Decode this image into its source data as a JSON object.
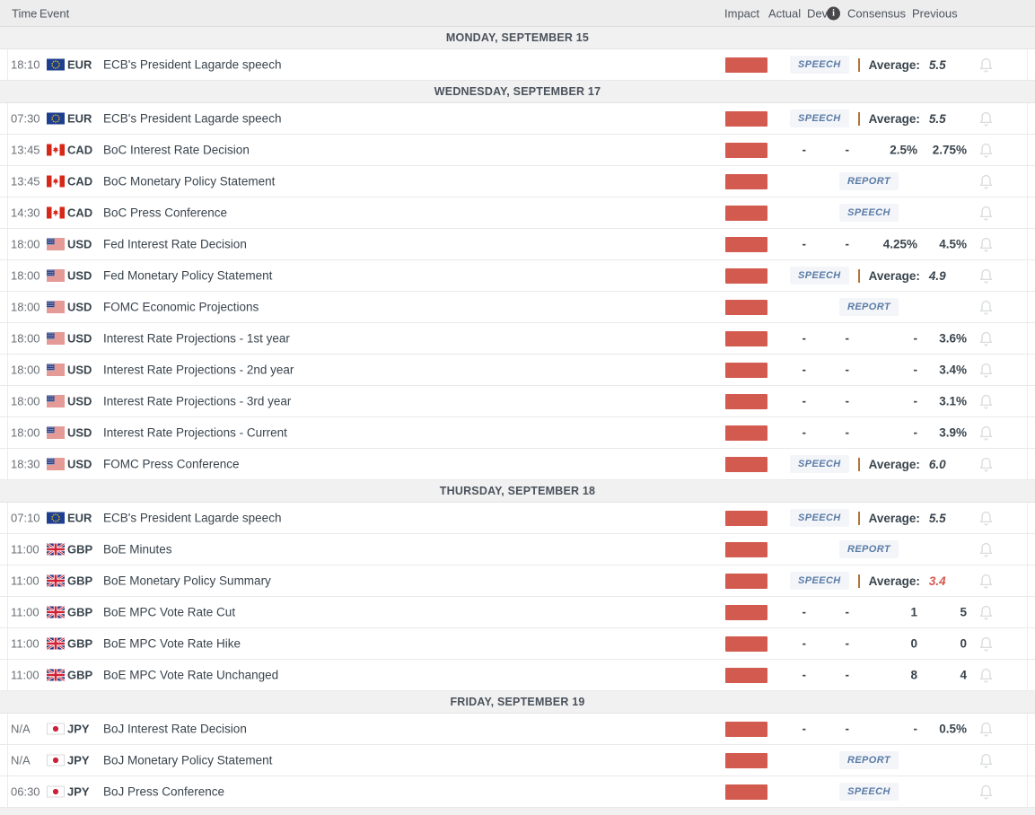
{
  "columns": {
    "time": "Time",
    "event": "Event",
    "impact": "Impact",
    "actual": "Actual",
    "dev": "Dev",
    "consensus": "Consensus",
    "previous": "Previous"
  },
  "labels": {
    "average": "Average:"
  },
  "icons": {
    "info_icon": "i",
    "bell_icon": "bell-outline",
    "flag_icons": [
      "eu",
      "ca",
      "us",
      "gb",
      "jp"
    ]
  },
  "colors": {
    "impact_high": "#d25a4e",
    "badge_text": "#5a7ba6",
    "badge_bg": "#f3f5f9",
    "average_red": "#d4574c",
    "separator_amber": "#b0763a",
    "header_bg": "#ededee",
    "day_band_bg": "#f1f1f2"
  },
  "rows": [
    {
      "type": "day",
      "label": "MONDAY, SEPTEMBER 15"
    },
    {
      "type": "event",
      "time": "18:10",
      "flag": "eu",
      "currency": "EUR",
      "title": "ECB's President Lagarde speech",
      "impact": "high",
      "badge": "SPEECH",
      "average_value": "5.5",
      "average_red": false
    },
    {
      "type": "day",
      "label": "WEDNESDAY, SEPTEMBER 17"
    },
    {
      "type": "event",
      "time": "07:30",
      "flag": "eu",
      "currency": "EUR",
      "title": "ECB's President Lagarde speech",
      "impact": "high",
      "badge": "SPEECH",
      "average_value": "5.5",
      "average_red": false
    },
    {
      "type": "event",
      "time": "13:45",
      "flag": "ca",
      "currency": "CAD",
      "title": "BoC Interest Rate Decision",
      "impact": "high",
      "actual": "-",
      "dev": "-",
      "consensus": "2.5%",
      "previous": "2.75%"
    },
    {
      "type": "event",
      "time": "13:45",
      "flag": "ca",
      "currency": "CAD",
      "title": "BoC Monetary Policy Statement",
      "impact": "high",
      "badge_center": "REPORT"
    },
    {
      "type": "event",
      "time": "14:30",
      "flag": "ca",
      "currency": "CAD",
      "title": "BoC Press Conference",
      "impact": "high",
      "badge_center": "SPEECH"
    },
    {
      "type": "event",
      "time": "18:00",
      "flag": "us",
      "currency": "USD",
      "title": "Fed Interest Rate Decision",
      "impact": "high",
      "actual": "-",
      "dev": "-",
      "consensus": "4.25%",
      "previous": "4.5%"
    },
    {
      "type": "event",
      "time": "18:00",
      "flag": "us",
      "currency": "USD",
      "title": "Fed Monetary Policy Statement",
      "impact": "high",
      "badge": "SPEECH",
      "average_value": "4.9",
      "average_red": false
    },
    {
      "type": "event",
      "time": "18:00",
      "flag": "us",
      "currency": "USD",
      "title": "FOMC Economic Projections",
      "impact": "high",
      "badge_center": "REPORT"
    },
    {
      "type": "event",
      "time": "18:00",
      "flag": "us",
      "currency": "USD",
      "title": "Interest Rate Projections - 1st year",
      "impact": "high",
      "actual": "-",
      "dev": "-",
      "consensus": "-",
      "previous": "3.6%"
    },
    {
      "type": "event",
      "time": "18:00",
      "flag": "us",
      "currency": "USD",
      "title": "Interest Rate Projections - 2nd year",
      "impact": "high",
      "actual": "-",
      "dev": "-",
      "consensus": "-",
      "previous": "3.4%"
    },
    {
      "type": "event",
      "time": "18:00",
      "flag": "us",
      "currency": "USD",
      "title": "Interest Rate Projections - 3rd year",
      "impact": "high",
      "actual": "-",
      "dev": "-",
      "consensus": "-",
      "previous": "3.1%"
    },
    {
      "type": "event",
      "time": "18:00",
      "flag": "us",
      "currency": "USD",
      "title": "Interest Rate Projections - Current",
      "impact": "high",
      "actual": "-",
      "dev": "-",
      "consensus": "-",
      "previous": "3.9%"
    },
    {
      "type": "event",
      "time": "18:30",
      "flag": "us",
      "currency": "USD",
      "title": "FOMC Press Conference",
      "impact": "high",
      "badge": "SPEECH",
      "average_value": "6.0",
      "average_red": false
    },
    {
      "type": "day",
      "label": "THURSDAY, SEPTEMBER 18"
    },
    {
      "type": "event",
      "time": "07:10",
      "flag": "eu",
      "currency": "EUR",
      "title": "ECB's President Lagarde speech",
      "impact": "high",
      "badge": "SPEECH",
      "average_value": "5.5",
      "average_red": false
    },
    {
      "type": "event",
      "time": "11:00",
      "flag": "gb",
      "currency": "GBP",
      "title": "BoE Minutes",
      "impact": "high",
      "badge_center": "REPORT"
    },
    {
      "type": "event",
      "time": "11:00",
      "flag": "gb",
      "currency": "GBP",
      "title": "BoE Monetary Policy Summary",
      "impact": "high",
      "badge": "SPEECH",
      "average_value": "3.4",
      "average_red": true
    },
    {
      "type": "event",
      "time": "11:00",
      "flag": "gb",
      "currency": "GBP",
      "title": "BoE MPC Vote Rate Cut",
      "impact": "high",
      "actual": "-",
      "dev": "-",
      "consensus": "1",
      "previous": "5"
    },
    {
      "type": "event",
      "time": "11:00",
      "flag": "gb",
      "currency": "GBP",
      "title": "BoE MPC Vote Rate Hike",
      "impact": "high",
      "actual": "-",
      "dev": "-",
      "consensus": "0",
      "previous": "0"
    },
    {
      "type": "event",
      "time": "11:00",
      "flag": "gb",
      "currency": "GBP",
      "title": "BoE MPC Vote Rate Unchanged",
      "impact": "high",
      "actual": "-",
      "dev": "-",
      "consensus": "8",
      "previous": "4"
    },
    {
      "type": "day",
      "label": "FRIDAY, SEPTEMBER 19"
    },
    {
      "type": "event",
      "time": "N/A",
      "flag": "jp",
      "currency": "JPY",
      "title": "BoJ Interest Rate Decision",
      "impact": "high",
      "actual": "-",
      "dev": "-",
      "consensus": "-",
      "previous": "0.5%"
    },
    {
      "type": "event",
      "time": "N/A",
      "flag": "jp",
      "currency": "JPY",
      "title": "BoJ Monetary Policy Statement",
      "impact": "high",
      "badge_center": "REPORT"
    },
    {
      "type": "event",
      "time": "06:30",
      "flag": "jp",
      "currency": "JPY",
      "title": "BoJ Press Conference",
      "impact": "high",
      "badge_center": "SPEECH"
    }
  ]
}
